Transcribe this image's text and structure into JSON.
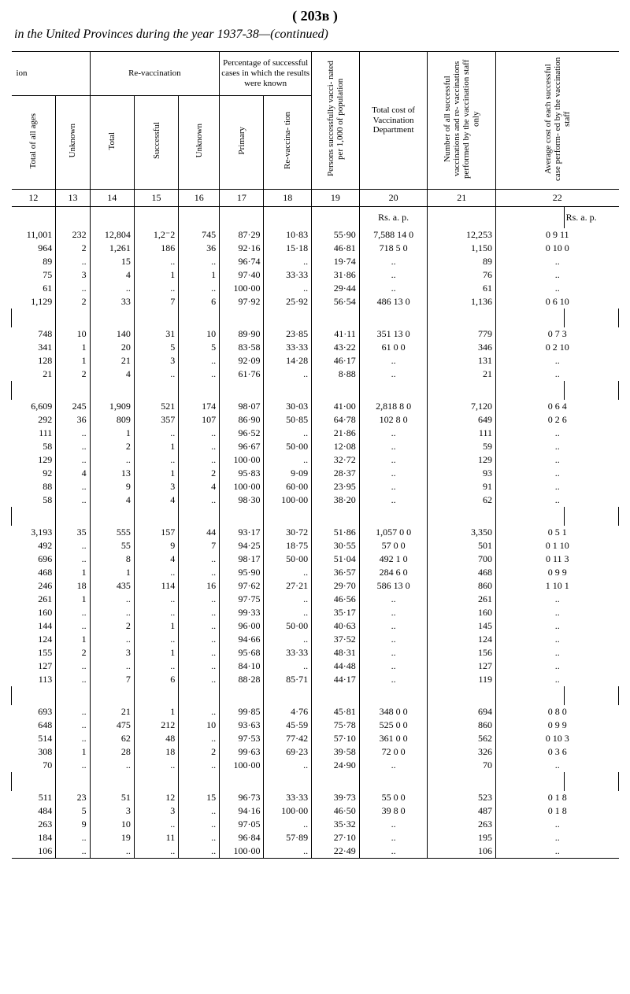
{
  "page_header": "( 203ʙ )",
  "title": "in the United Provinces during the year 1937-38—(continued)",
  "headers": {
    "ion": "ion",
    "revacc": "Re-vaccination",
    "pct_block": "Percentage of successful cases in which the results were known",
    "c1": "Total of all ages",
    "c2": "Unknown",
    "c3": "Total",
    "c4": "Successful",
    "c5": "Unknown",
    "c6": "Primary",
    "c7": "Re-vaccina-\ntion",
    "c8": "Persons successfully vacci-\nnated per 1,000 of\npopulation",
    "c9": "Total cost\nof Vaccination\nDepartment",
    "c10": "Number of all successful\nvaccinations and re-\nvaccinations performed\nby the vaccination\nstaff only",
    "c11": "Average cost of each\nsuccessful case perform-\ned by the vaccination\nstaff"
  },
  "colnums": [
    "12",
    "13",
    "14",
    "15",
    "16",
    "17",
    "18",
    "19",
    "20",
    "21",
    "22"
  ],
  "rs_ap_left": "Rs. a. p.",
  "rs_ap_right": "Rs. a. p.",
  "groups": [
    {
      "rows": [
        [
          "11,001",
          "232",
          "12,804",
          "1,2⁻2",
          "745",
          "87·29",
          "10·83",
          "55·90",
          "7,588 14 0",
          "12,253",
          "0 9 11"
        ],
        [
          "964",
          "2",
          "1,261",
          "186",
          "36",
          "92·16",
          "15·18",
          "46·81",
          "718 5 0",
          "1,150",
          "0 10 0"
        ],
        [
          "89",
          "..",
          "15",
          "..",
          "..",
          "96·74",
          "..",
          "19·74",
          "..",
          "89",
          ".."
        ],
        [
          "75",
          "3",
          "4",
          "1",
          "1",
          "97·40",
          "33·33",
          "31·86",
          "..",
          "76",
          ".."
        ],
        [
          "61",
          "..",
          "..",
          "..",
          "..",
          "100·00",
          "..",
          "29·44",
          "..",
          "61",
          ".."
        ],
        [
          "1,129",
          "2",
          "33",
          "7",
          "6",
          "97·92",
          "25·92",
          "56·54",
          "486 13 0",
          "1,136",
          "0 6 10"
        ]
      ]
    },
    {
      "rows": [
        [
          "748",
          "10",
          "140",
          "31",
          "10",
          "89·90",
          "23·85",
          "41·11",
          "351 13 0",
          "779",
          "0 7 3"
        ],
        [
          "341",
          "1",
          "20",
          "5",
          "5",
          "83·58",
          "33·33",
          "43·22",
          "61 0 0",
          "346",
          "0 2 10"
        ],
        [
          "128",
          "1",
          "21",
          "3",
          "..",
          "92·09",
          "14·28",
          "46·17",
          "..",
          "131",
          ".."
        ],
        [
          "21",
          "2",
          "4",
          "..",
          "..",
          "61·76",
          "..",
          "8·88",
          "..",
          "21",
          ".."
        ]
      ]
    },
    {
      "rows": [
        [
          "6,609",
          "245",
          "1,909",
          "521",
          "174",
          "98·07",
          "30·03",
          "41·00",
          "2,818 8 0",
          "7,120",
          "0 6 4"
        ],
        [
          "292",
          "36",
          "809",
          "357",
          "107",
          "86·90",
          "50·85",
          "64·78",
          "102 8 0",
          "649",
          "0 2 6"
        ],
        [
          "111",
          "..",
          "1",
          "..",
          "..",
          "96·52",
          "..",
          "21·86",
          "..",
          "111",
          ".."
        ],
        [
          "58",
          "..",
          "2",
          "1",
          "..",
          "96·67",
          "50·00",
          "12·08",
          "..",
          "59",
          ".."
        ],
        [
          "129",
          "..",
          "..",
          "..",
          "..",
          "100·00",
          "..",
          "32·72",
          "..",
          "129",
          ".."
        ],
        [
          "92",
          "4",
          "13",
          "1",
          "2",
          "95·83",
          "9·09",
          "28·37",
          "..",
          "93",
          ".."
        ],
        [
          "88",
          "..",
          "9",
          "3",
          "4",
          "100·00",
          "60·00",
          "23·95",
          "..",
          "91",
          ".."
        ],
        [
          "58",
          "..",
          "4",
          "4",
          "..",
          "98·30",
          "100·00",
          "38·20",
          "..",
          "62",
          ".."
        ]
      ]
    },
    {
      "rows": [
        [
          "3,193",
          "35",
          "555",
          "157",
          "44",
          "93·17",
          "30·72",
          "51·86",
          "1,057 0 0",
          "3,350",
          "0 5 1"
        ],
        [
          "492",
          "..",
          "55",
          "9",
          "7",
          "94·25",
          "18·75",
          "30·55",
          "57 0 0",
          "501",
          "0 1 10"
        ],
        [
          "696",
          "..",
          "8",
          "4",
          "..",
          "98·17",
          "50·00",
          "51·04",
          "492 1 0",
          "700",
          "0 11 3"
        ],
        [
          "468",
          "1",
          "1",
          "..",
          "..",
          "95·90",
          "..",
          "36·57",
          "284 6 0",
          "468",
          "0 9 9"
        ],
        [
          "246",
          "18",
          "435",
          "114",
          "16",
          "97·62",
          "27·21",
          "29·70",
          "586 13 0",
          "860",
          "1 10 1"
        ],
        [
          "261",
          "1",
          "..",
          "..",
          "..",
          "97·75",
          "..",
          "46·56",
          "..",
          "261",
          ".."
        ],
        [
          "160",
          "..",
          "..",
          "..",
          "..",
          "99·33",
          "..",
          "35·17",
          "..",
          "160",
          ".."
        ],
        [
          "144",
          "..",
          "2",
          "1",
          "..",
          "96·00",
          "50·00",
          "40·63",
          "..",
          "145",
          ".."
        ],
        [
          "124",
          "1",
          "..",
          "..",
          "..",
          "94·66",
          "..",
          "37·52",
          "..",
          "124",
          ".."
        ],
        [
          "155",
          "2",
          "3",
          "1",
          "..",
          "95·68",
          "33·33",
          "48·31",
          "..",
          "156",
          ".."
        ],
        [
          "127",
          "..",
          "..",
          "..",
          "..",
          "84·10",
          "..",
          "44·48",
          "..",
          "127",
          ".."
        ],
        [
          "113",
          "..",
          "7",
          "6",
          "..",
          "88·28",
          "85·71",
          "44·17",
          "..",
          "119",
          ".."
        ]
      ]
    },
    {
      "rows": [
        [
          "693",
          "..",
          "21",
          "1",
          "..",
          "99·85",
          "4·76",
          "45·81",
          "348 0 0",
          "694",
          "0 8 0"
        ],
        [
          "648",
          "..",
          "475",
          "212",
          "10",
          "93·63",
          "45·59",
          "75·78",
          "525 0 0",
          "860",
          "0 9 9"
        ],
        [
          "514",
          "..",
          "62",
          "48",
          "..",
          "97·53",
          "77·42",
          "57·10",
          "361 0 0",
          "562",
          "0 10 3"
        ],
        [
          "308",
          "1",
          "28",
          "18",
          "2",
          "99·63",
          "69·23",
          "39·58",
          "72 0 0",
          "326",
          "0 3 6"
        ],
        [
          "70",
          "..",
          "..",
          "..",
          "..",
          "100·00",
          "..",
          "24·90",
          "..",
          "70",
          ".."
        ]
      ]
    },
    {
      "rows": [
        [
          "511",
          "23",
          "51",
          "12",
          "15",
          "96·73",
          "33·33",
          "39·73",
          "55 0 0",
          "523",
          "0 1 8"
        ],
        [
          "484",
          "5",
          "3",
          "3",
          "..",
          "94·16",
          "100·00",
          "46·50",
          "39 8 0",
          "487",
          "0 1 8"
        ],
        [
          "263",
          "9",
          "10",
          "..",
          "..",
          "97·05",
          "..",
          "35·32",
          "..",
          "263",
          ".."
        ],
        [
          "184",
          "..",
          "19",
          "11",
          "..",
          "96·84",
          "57·89",
          "27·10",
          "..",
          "195",
          ".."
        ],
        [
          "106",
          "..",
          "..",
          "..",
          "..",
          "100·00",
          "..",
          "22·49",
          "..",
          "106",
          ".."
        ]
      ]
    }
  ]
}
